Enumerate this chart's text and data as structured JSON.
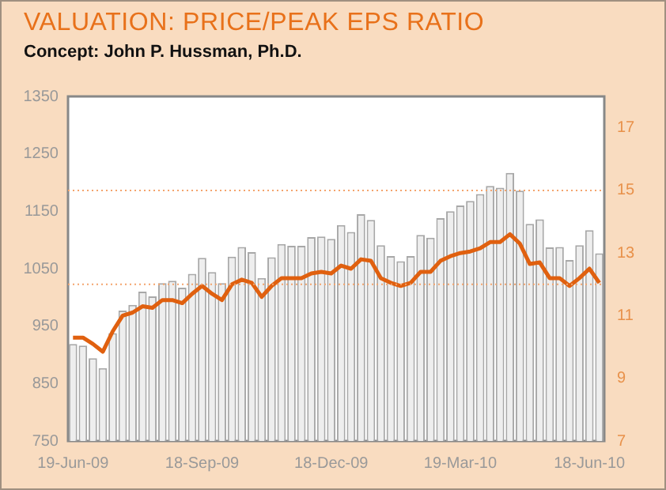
{
  "chart_data": {
    "type": "bar",
    "title": "VALUATION: PRICE/PEAK EPS RATIO",
    "subtitle": "Concept: John P. Hussman, Ph.D.",
    "categories": [
      "19-Jun-09",
      null,
      null,
      null,
      null,
      null,
      null,
      null,
      null,
      null,
      null,
      null,
      null,
      "18-Sep-09",
      null,
      null,
      null,
      null,
      null,
      null,
      null,
      null,
      null,
      null,
      null,
      null,
      "18-Dec-09",
      null,
      null,
      null,
      null,
      null,
      null,
      null,
      null,
      null,
      null,
      null,
      null,
      "19-Mar-10",
      null,
      null,
      null,
      null,
      null,
      null,
      null,
      null,
      null,
      null,
      null,
      null,
      "18-Jun-10",
      null
    ],
    "series": [
      {
        "color": "#eeeeee",
        "values": [
          919,
          916,
          894,
          877,
          938,
          977,
          987,
          1010,
          1002,
          1025,
          1029,
          1017,
          1041,
          1069,
          1044,
          1025,
          1071,
          1088,
          1079,
          1034,
          1070,
          1093,
          1090,
          1090,
          1105,
          1106,
          1102,
          1126,
          1114,
          1145,
          1135,
          1091,
          1072,
          1063,
          1072,
          1109,
          1104,
          1138,
          1150,
          1160,
          1168,
          1180,
          1194,
          1191,
          1217,
          1186,
          1128,
          1136,
          1087,
          1088,
          1065,
          1091,
          1117,
          1077
        ]
      },
      {
        "type": "line",
        "axis": "y2",
        "color": "#e0600f",
        "values": [
          10.3,
          10.3,
          10.1,
          9.85,
          10.5,
          11.0,
          11.1,
          11.3,
          11.25,
          11.5,
          11.5,
          11.4,
          11.7,
          11.95,
          11.7,
          11.5,
          12.0,
          12.15,
          12.05,
          11.6,
          11.95,
          12.2,
          12.2,
          12.2,
          12.35,
          12.4,
          12.35,
          12.6,
          12.5,
          12.8,
          12.75,
          12.2,
          12.05,
          11.95,
          12.05,
          12.4,
          12.4,
          12.75,
          12.9,
          13.0,
          13.05,
          13.15,
          13.35,
          13.35,
          13.6,
          13.3,
          12.65,
          12.7,
          12.2,
          12.2,
          11.95,
          12.2,
          12.5,
          12.05
        ]
      }
    ],
    "ylim": [
      750,
      1350
    ],
    "yticks": [
      750,
      850,
      950,
      1050,
      1150,
      1250,
      1350
    ],
    "y2lim": [
      7,
      18
    ],
    "y2ticks": [
      7,
      9,
      11,
      13,
      15,
      17
    ],
    "ref_lines": [
      {
        "axis": "y2",
        "value": 15,
        "color": "#f4a46c",
        "line_style": "dotted"
      },
      {
        "axis": "y2",
        "value": 12,
        "color": "#f4a46c",
        "line_style": "dotted"
      }
    ]
  }
}
